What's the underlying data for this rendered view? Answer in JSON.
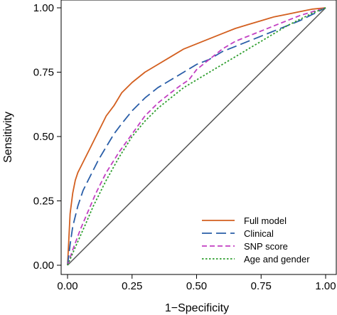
{
  "chart_data": {
    "type": "line",
    "xlabel": "1−Specificity",
    "ylabel": "Sensitivity",
    "xlim": [
      0,
      1
    ],
    "ylim": [
      0,
      1
    ],
    "xticks": [
      0,
      0.25,
      0.5,
      0.75,
      1
    ],
    "yticks": [
      0,
      0.25,
      0.5,
      0.75,
      1
    ],
    "xtick_labels": [
      "0.00",
      "0.25",
      "0.50",
      "0.75",
      "1.00"
    ],
    "ytick_labels": [
      "0.00",
      "0.25",
      "0.50",
      "0.75",
      "1.00"
    ],
    "grid": false,
    "legend_position": "bottom-right",
    "reference_line": {
      "x": [
        0,
        1
      ],
      "y": [
        0,
        1
      ],
      "color": "#555555"
    },
    "series": [
      {
        "name": "Full model",
        "color": "#d35f1f",
        "dash": "solid",
        "x": [
          0,
          0.005,
          0.01,
          0.02,
          0.03,
          0.04,
          0.05,
          0.07,
          0.09,
          0.11,
          0.13,
          0.15,
          0.18,
          0.21,
          0.25,
          0.3,
          0.35,
          0.4,
          0.45,
          0.5,
          0.55,
          0.6,
          0.65,
          0.7,
          0.75,
          0.8,
          0.85,
          0.9,
          0.95,
          1.0
        ],
        "y": [
          0,
          0.1,
          0.2,
          0.28,
          0.33,
          0.36,
          0.38,
          0.42,
          0.46,
          0.5,
          0.54,
          0.58,
          0.62,
          0.67,
          0.71,
          0.75,
          0.78,
          0.81,
          0.84,
          0.86,
          0.88,
          0.9,
          0.92,
          0.935,
          0.95,
          0.965,
          0.975,
          0.985,
          0.995,
          1.0
        ]
      },
      {
        "name": "Clinical",
        "color": "#2a5ea8",
        "dash": "long-dash",
        "x": [
          0,
          0.01,
          0.02,
          0.04,
          0.06,
          0.08,
          0.1,
          0.12,
          0.15,
          0.18,
          0.21,
          0.25,
          0.3,
          0.35,
          0.4,
          0.45,
          0.5,
          0.55,
          0.6,
          0.65,
          0.7,
          0.75,
          0.8,
          0.85,
          0.9,
          0.95,
          1.0
        ],
        "y": [
          0,
          0.08,
          0.15,
          0.23,
          0.29,
          0.33,
          0.37,
          0.41,
          0.46,
          0.51,
          0.55,
          0.6,
          0.65,
          0.69,
          0.72,
          0.75,
          0.78,
          0.8,
          0.83,
          0.85,
          0.87,
          0.89,
          0.91,
          0.93,
          0.95,
          0.975,
          1.0
        ]
      },
      {
        "name": "SNP score",
        "color": "#c23fc2",
        "dash": "dash",
        "x": [
          0,
          0.02,
          0.05,
          0.08,
          0.11,
          0.15,
          0.2,
          0.25,
          0.3,
          0.35,
          0.4,
          0.44,
          0.47,
          0.5,
          0.55,
          0.6,
          0.65,
          0.7,
          0.75,
          0.8,
          0.85,
          0.9,
          0.95,
          1.0
        ],
        "y": [
          0,
          0.06,
          0.14,
          0.21,
          0.28,
          0.36,
          0.44,
          0.51,
          0.58,
          0.63,
          0.67,
          0.7,
          0.72,
          0.76,
          0.8,
          0.84,
          0.87,
          0.89,
          0.91,
          0.93,
          0.95,
          0.97,
          0.985,
          1.0
        ]
      },
      {
        "name": "Age and gender",
        "color": "#2e9e2e",
        "dash": "dot",
        "x": [
          0,
          0.03,
          0.07,
          0.1,
          0.15,
          0.2,
          0.25,
          0.3,
          0.35,
          0.4,
          0.45,
          0.5,
          0.55,
          0.6,
          0.65,
          0.7,
          0.75,
          0.8,
          0.85,
          0.9,
          0.95,
          1.0
        ],
        "y": [
          0,
          0.07,
          0.16,
          0.23,
          0.33,
          0.42,
          0.5,
          0.56,
          0.61,
          0.65,
          0.69,
          0.72,
          0.75,
          0.78,
          0.81,
          0.84,
          0.87,
          0.9,
          0.93,
          0.955,
          0.98,
          1.0
        ]
      }
    ]
  }
}
